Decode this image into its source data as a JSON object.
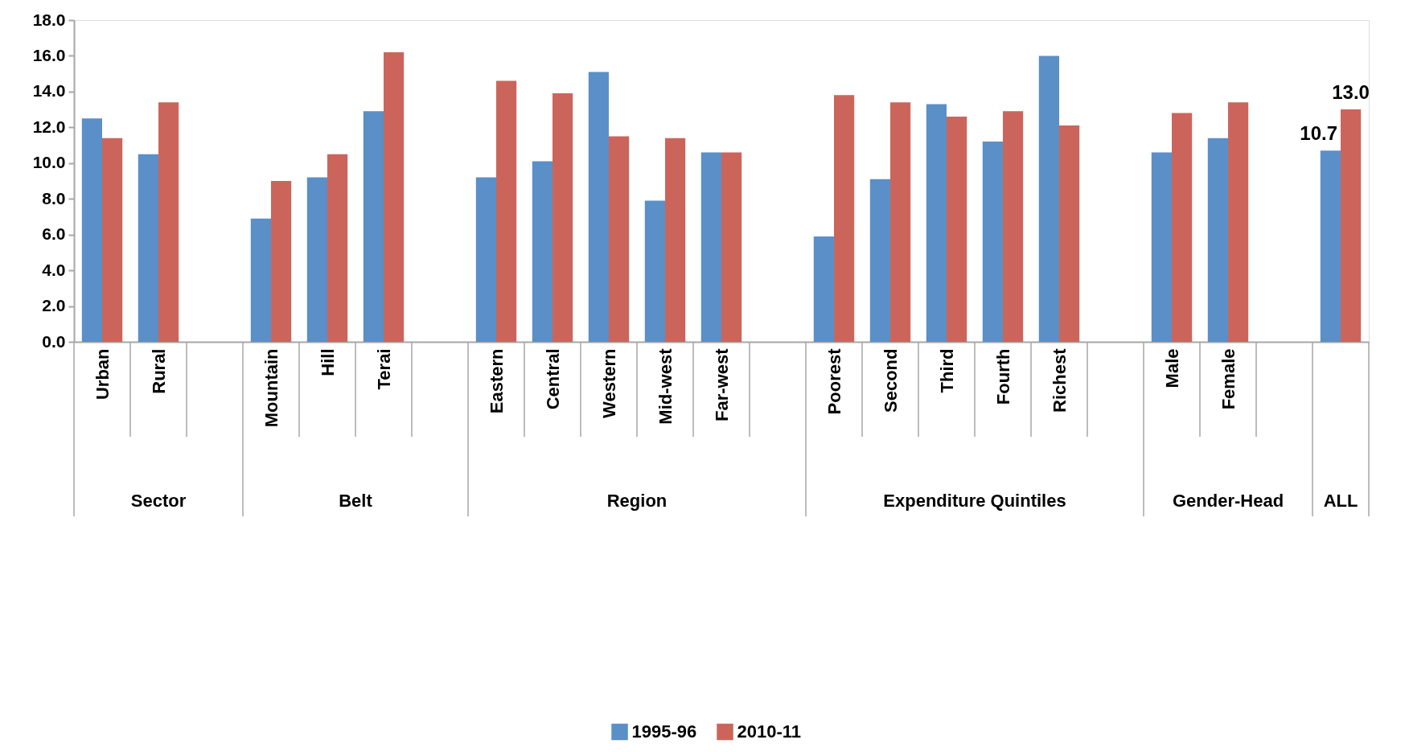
{
  "chart_data": {
    "type": "bar",
    "categories": [
      "Urban",
      "Rural",
      null,
      "Mountain",
      "Hill",
      "Terai",
      null,
      "Eastern",
      "Central",
      "Western",
      "Mid-west",
      "Far-west",
      null,
      "Poorest",
      "Second",
      "Third",
      "Fourth",
      "Richest",
      null,
      "Male",
      "Female",
      null,
      null
    ],
    "series": [
      {
        "name": "1995-96",
        "color": "#5b8fc7",
        "values": [
          12.5,
          10.5,
          null,
          6.9,
          9.2,
          12.9,
          null,
          9.2,
          10.1,
          15.1,
          7.9,
          10.6,
          null,
          5.9,
          9.1,
          13.3,
          11.2,
          16.0,
          null,
          10.6,
          11.4,
          null,
          10.7
        ],
        "value_labels": [
          null,
          null,
          null,
          null,
          null,
          null,
          null,
          null,
          null,
          null,
          null,
          null,
          null,
          null,
          null,
          null,
          null,
          null,
          null,
          null,
          null,
          null,
          "10.7"
        ]
      },
      {
        "name": "2010-11",
        "color": "#cb655b",
        "values": [
          11.4,
          13.4,
          null,
          9.0,
          10.5,
          16.2,
          null,
          14.6,
          13.9,
          11.5,
          11.4,
          10.6,
          null,
          13.8,
          13.4,
          12.6,
          12.9,
          12.1,
          null,
          12.8,
          13.4,
          null,
          13.0
        ],
        "value_labels": [
          null,
          null,
          null,
          null,
          null,
          null,
          null,
          null,
          null,
          null,
          null,
          null,
          null,
          null,
          null,
          null,
          null,
          null,
          null,
          null,
          null,
          null,
          "13.0"
        ]
      }
    ],
    "ylim": [
      0,
      18
    ],
    "yticks": [
      {
        "value": 0,
        "label": "0.0"
      },
      {
        "value": 2,
        "label": "2.0"
      },
      {
        "value": 4,
        "label": "4.0"
      },
      {
        "value": 6,
        "label": "6.0"
      },
      {
        "value": 8,
        "label": "8.0"
      },
      {
        "value": 10,
        "label": "10.0"
      },
      {
        "value": 12,
        "label": "12.0"
      },
      {
        "value": 14,
        "label": "14.0"
      },
      {
        "value": 16,
        "label": "16.0"
      },
      {
        "value": 18,
        "label": "18.0"
      }
    ],
    "legend": "bottom",
    "annotations": [
      "Sector",
      "Belt",
      "Region",
      "Expenditure Quintiles",
      "Gender-Head",
      "ALL"
    ]
  }
}
